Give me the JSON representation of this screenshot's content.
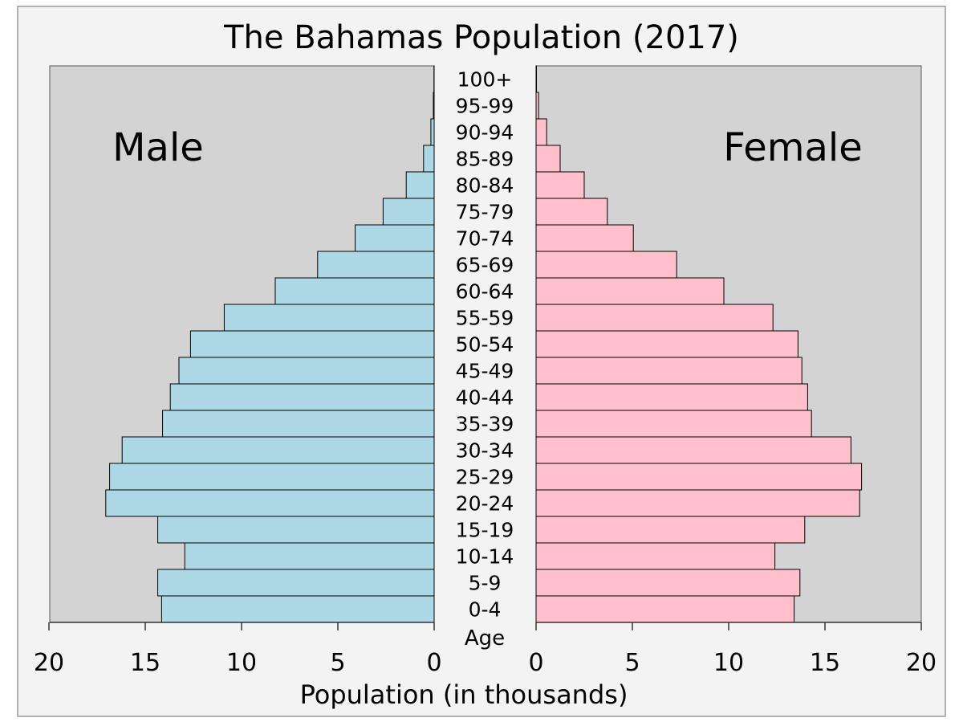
{
  "chart_data": {
    "type": "bar",
    "orientation": "horizontal-pyramid",
    "title": "The Bahamas Population (2017)",
    "xlabel": "Population (in thousands)",
    "ylabel": "Age",
    "xlim": [
      0,
      20
    ],
    "x_ticks": [
      "0",
      "5",
      "10",
      "15",
      "20"
    ],
    "grid": false,
    "categories": [
      "0-4",
      "5-9",
      "10-14",
      "15-19",
      "20-24",
      "25-29",
      "30-34",
      "35-39",
      "40-44",
      "45-49",
      "50-54",
      "55-59",
      "60-64",
      "65-69",
      "70-74",
      "75-79",
      "80-84",
      "85-89",
      "90-94",
      "95-99",
      "100+"
    ],
    "series": [
      {
        "name": "Male",
        "color": "#add8e6",
        "values": [
          14.15,
          14.35,
          12.95,
          14.35,
          17.05,
          16.85,
          16.2,
          14.1,
          13.7,
          13.25,
          12.65,
          10.9,
          8.25,
          6.05,
          4.1,
          2.65,
          1.45,
          0.55,
          0.17,
          0.04,
          0.01
        ]
      },
      {
        "name": "Female",
        "color": "#ffc0cb",
        "values": [
          13.4,
          13.7,
          12.4,
          13.95,
          16.8,
          16.9,
          16.35,
          14.3,
          14.1,
          13.8,
          13.6,
          12.3,
          9.75,
          7.3,
          5.05,
          3.7,
          2.5,
          1.25,
          0.55,
          0.13,
          0.02
        ]
      }
    ],
    "panel_background": "#d3d3d3",
    "figure_background": "#f3f3f3"
  }
}
